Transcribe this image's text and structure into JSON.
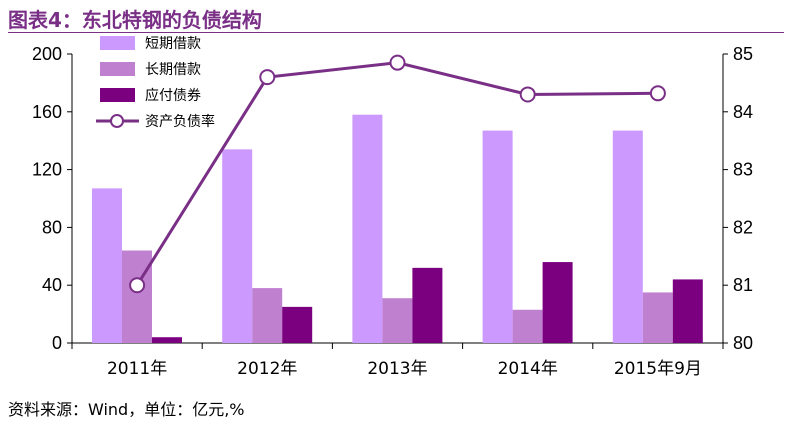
{
  "figure": {
    "title": "图表4：东北特钢的负债结构",
    "source": "资料来源：Wind，单位：亿元,%"
  },
  "chart_data": {
    "type": "bar",
    "categories": [
      "2011年",
      "2012年",
      "2013年",
      "2014年",
      "2015年9月"
    ],
    "series": [
      {
        "name": "短期借款",
        "kind": "bar",
        "axis": "left",
        "color": "#cc99ff",
        "values": [
          107,
          134,
          158,
          147,
          147
        ]
      },
      {
        "name": "长期借款",
        "kind": "bar",
        "axis": "left",
        "color": "#c080d0",
        "values": [
          64,
          38,
          31,
          23,
          35
        ]
      },
      {
        "name": "应付债券",
        "kind": "bar",
        "axis": "left",
        "color": "#7b0080",
        "values": [
          4,
          25,
          52,
          56,
          44
        ]
      },
      {
        "name": "资产负债率",
        "kind": "line",
        "axis": "right",
        "color": "#7a2f86",
        "values": [
          81.0,
          84.6,
          84.85,
          84.3,
          84.32
        ]
      }
    ],
    "y_left": {
      "min": 0,
      "max": 200,
      "ticks": [
        0,
        40,
        80,
        120,
        160,
        200
      ]
    },
    "y_right": {
      "min": 80,
      "max": 85,
      "ticks": [
        80,
        81,
        82,
        83,
        84,
        85
      ]
    },
    "legend_position": "top-left",
    "grid": false
  }
}
